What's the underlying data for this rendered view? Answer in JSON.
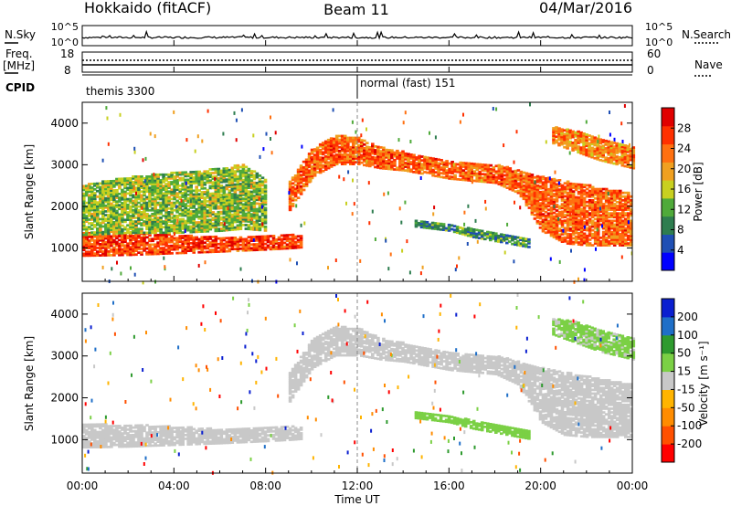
{
  "header": {
    "radar": "Hokkaido (fitACF)",
    "beam": "Beam 11",
    "date": "04/Mar/2016"
  },
  "strips": {
    "nsky_label": "N.Sky",
    "nsearch_label": "N.Search",
    "log_ticks": [
      "10^5",
      "10^0"
    ],
    "freq_label": "Freq.",
    "freq_unit": "[MHz]",
    "freq_ticks": [
      "18",
      "8"
    ],
    "nave_label": "Nave",
    "nave_ticks": [
      "60",
      "0"
    ],
    "cpid_label": "CPID",
    "cpid_segments": [
      {
        "name": "themis 3300",
        "start_hour": 0,
        "end_hour": 12
      },
      {
        "name": "normal (fast) 151",
        "start_hour": 12,
        "end_hour": 24
      }
    ]
  },
  "colors": {
    "power": [
      "#0000ff",
      "#1f4fb4",
      "#2e7d4f",
      "#4faa3a",
      "#c8d020",
      "#f0a020",
      "#ff7010",
      "#ff3000",
      "#e00000"
    ],
    "velocity": [
      "#ff0000",
      "#ff5000",
      "#ff8c00",
      "#ffb400",
      "#c8c8c8",
      "#7bd045",
      "#2e9a2e",
      "#1f6fc8",
      "#0a1fd0"
    ],
    "background": "#ffffff"
  },
  "chart_data": [
    {
      "type": "heatmap",
      "name": "power",
      "ylabel": "Slant Range [km]",
      "ylim": [
        200,
        4500
      ],
      "yticks": [
        1000,
        2000,
        3000,
        4000
      ],
      "colorbar": {
        "label": "Power [dB]",
        "range": [
          0,
          32
        ],
        "ticks": [
          4,
          8,
          12,
          16,
          20,
          24,
          28
        ]
      },
      "bands": [
        {
          "hours": [
            0,
            2,
            4,
            6,
            8,
            9,
            9.5
          ],
          "lower_km": [
            800,
            820,
            860,
            900,
            950,
            980,
            1000
          ],
          "upper_km": [
            1350,
            1350,
            1300,
            1250,
            1300,
            1300,
            1300
          ],
          "value_db": 26
        },
        {
          "hours": [
            0,
            2,
            4,
            6,
            7,
            8
          ],
          "lower_km": [
            1300,
            1350,
            1350,
            1400,
            1450,
            1400
          ],
          "upper_km": [
            2500,
            2700,
            2800,
            2900,
            3000,
            2600
          ],
          "value_db": 14
        },
        {
          "hours": [
            9,
            10,
            11,
            12,
            13,
            14,
            15,
            16,
            17,
            18,
            19,
            20,
            21,
            22,
            23,
            24
          ],
          "lower_km": [
            1900,
            2700,
            3000,
            3000,
            2900,
            2850,
            2750,
            2650,
            2600,
            2550,
            2300,
            1400,
            1100,
            1050,
            1050,
            1050
          ],
          "upper_km": [
            2600,
            3400,
            3700,
            3650,
            3400,
            3300,
            3200,
            3100,
            3050,
            3000,
            2850,
            2700,
            2600,
            2500,
            2400,
            2300
          ],
          "value_db": 24
        },
        {
          "hours": [
            14.5,
            16,
            17,
            18,
            19.5
          ],
          "lower_km": [
            1500,
            1400,
            1250,
            1150,
            1000
          ],
          "upper_km": [
            1650,
            1550,
            1450,
            1350,
            1200
          ],
          "value_db": 10
        },
        {
          "hours": [
            20.5,
            21.5,
            22.5,
            24
          ],
          "lower_km": [
            3500,
            3300,
            3100,
            2900
          ],
          "upper_km": [
            3900,
            3800,
            3600,
            3400
          ],
          "value_db": 22
        }
      ]
    },
    {
      "type": "heatmap",
      "name": "velocity",
      "xlabel": "Time UT",
      "ylabel": "Slant Range [km]",
      "ylim": [
        200,
        4500
      ],
      "yticks": [
        1000,
        2000,
        3000,
        4000
      ],
      "xlim": [
        0,
        24
      ],
      "xticks": [
        "00:00",
        "04:00",
        "08:00",
        "12:00",
        "16:00",
        "20:00",
        "00:00"
      ],
      "colorbar": {
        "label": "Velocity [m s⁻¹]",
        "range": [
          -250,
          250
        ],
        "ticks": [
          200,
          100,
          50,
          15,
          -15,
          -50,
          -100,
          -200
        ]
      },
      "bands": [
        {
          "hours": [
            0,
            2,
            4,
            6,
            8,
            9,
            9.5
          ],
          "lower_km": [
            800,
            820,
            860,
            900,
            950,
            980,
            1000
          ],
          "upper_km": [
            1350,
            1350,
            1300,
            1250,
            1300,
            1300,
            1300
          ],
          "value_ms": 0
        },
        {
          "hours": [
            9,
            10,
            11,
            12,
            13,
            14,
            15,
            16,
            17,
            18,
            19,
            20,
            21,
            22,
            23,
            24
          ],
          "lower_km": [
            1900,
            2700,
            3000,
            3000,
            2900,
            2850,
            2750,
            2650,
            2600,
            2550,
            2300,
            1400,
            1100,
            1050,
            1050,
            1050
          ],
          "upper_km": [
            2600,
            3400,
            3700,
            3650,
            3400,
            3300,
            3200,
            3100,
            3050,
            3000,
            2850,
            2700,
            2600,
            2500,
            2400,
            2300
          ],
          "value_ms": 0
        },
        {
          "hours": [
            14.5,
            16,
            17,
            18,
            19.5
          ],
          "lower_km": [
            1500,
            1400,
            1250,
            1150,
            1000
          ],
          "upper_km": [
            1650,
            1550,
            1450,
            1350,
            1200
          ],
          "value_ms": 60
        },
        {
          "hours": [
            20.5,
            21.5,
            22.5,
            24
          ],
          "lower_km": [
            3500,
            3300,
            3100,
            2900
          ],
          "upper_km": [
            3900,
            3800,
            3600,
            3400
          ],
          "value_ms": 40
        }
      ]
    }
  ]
}
